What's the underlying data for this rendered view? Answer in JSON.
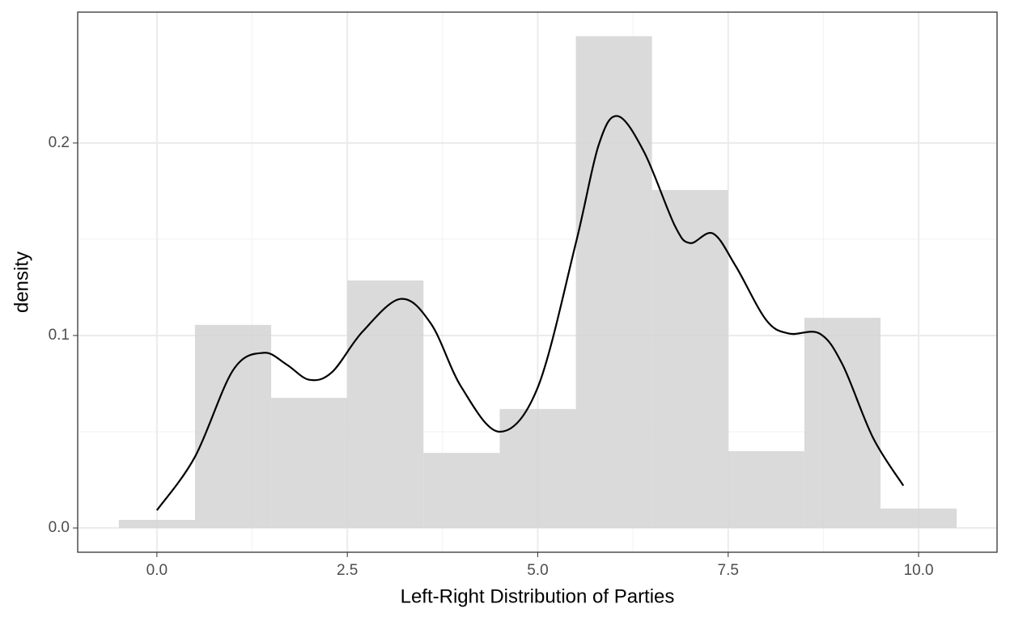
{
  "chart_data": {
    "type": "histogram",
    "xlabel": "Left-Right Distribution of Parties",
    "ylabel": "density",
    "bins": [
      -0.5,
      0.5,
      1.5,
      2.5,
      3.5,
      4.5,
      5.5,
      6.5,
      7.5,
      8.5,
      9.5,
      10.5
    ],
    "values": [
      0.0042,
      0.1055,
      0.0676,
      0.1286,
      0.039,
      0.0618,
      0.2555,
      0.1756,
      0.0399,
      0.1092,
      0.0101
    ],
    "color": "#d3d3d3",
    "density": {
      "color": "#000000",
      "x": [
        0,
        0.5,
        1.0,
        1.4,
        1.7,
        2.0,
        2.3,
        2.7,
        3.2,
        3.6,
        4.0,
        4.5,
        5.0,
        5.5,
        5.8,
        6.05,
        6.4,
        6.8,
        7.0,
        7.3,
        7.6,
        8.0,
        8.3,
        8.7,
        9.0,
        9.4,
        9.8
      ],
      "y": [
        0.0092,
        0.037,
        0.082,
        0.091,
        0.085,
        0.077,
        0.081,
        0.102,
        0.119,
        0.106,
        0.073,
        0.05,
        0.073,
        0.148,
        0.199,
        0.214,
        0.195,
        0.157,
        0.148,
        0.153,
        0.136,
        0.108,
        0.101,
        0.101,
        0.085,
        0.047,
        0.022
      ]
    },
    "xlim": [
      -1.04,
      11.03
    ],
    "ylim": [
      -0.0126,
      0.268
    ],
    "xticks": [
      {
        "value": 0,
        "label": "0.0"
      },
      {
        "value": 2.5,
        "label": "2.5"
      },
      {
        "value": 5,
        "label": "5.0"
      },
      {
        "value": 7.5,
        "label": "7.5"
      },
      {
        "value": 10,
        "label": "10.0"
      }
    ],
    "yticks": [
      {
        "value": 0,
        "label": "0.0"
      },
      0.1,
      0.2
    ],
    "grid": true
  }
}
